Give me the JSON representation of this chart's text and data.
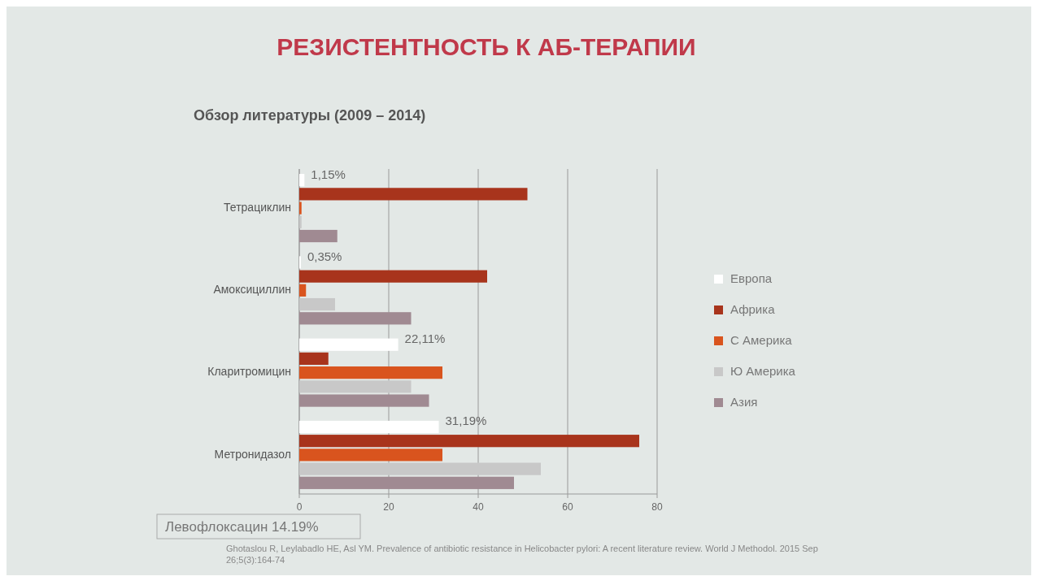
{
  "chart_data": {
    "type": "bar",
    "orientation": "horizontal",
    "title": "РЕЗИСТЕНТНОСТЬ К АБ-ТЕРАПИИ",
    "subtitle": "Обзор литературы (2009 – 2014)",
    "categories": [
      "Тетрациклин",
      "Амоксициллин",
      "Кларитромицин",
      "Метронидазол"
    ],
    "series": [
      {
        "name": "Европа",
        "color": "#ffffff",
        "values": [
          1.15,
          0.35,
          22.11,
          31.19
        ],
        "value_labels": [
          "1,15%",
          "0,35%",
          "22,11%",
          "31,19%"
        ]
      },
      {
        "name": "Африка",
        "color": "#a8341c",
        "values": [
          51,
          42,
          6.5,
          76
        ]
      },
      {
        "name": "С Америка",
        "color": "#d9541e",
        "values": [
          0.5,
          1.5,
          32,
          32
        ]
      },
      {
        "name": "Ю Америка",
        "color": "#c8c8c8",
        "values": [
          0.5,
          8,
          25,
          54
        ]
      },
      {
        "name": "Азия",
        "color": "#a08a92",
        "values": [
          8.5,
          25,
          29,
          48
        ]
      }
    ],
    "xlim": [
      0,
      80
    ],
    "xticks": [
      0,
      20,
      40,
      60,
      80
    ],
    "grid": "x",
    "legend": "right",
    "annotations": [
      "Левофлоксацин 14.19%",
      "Ghotaslou R, Leylabadlo HE, Asl YM. Prevalence of antibiotic resistance in Helicobacter pylori: A recent literature review. World J Methodol. 2015 Sep 26;5(3):164-74"
    ]
  }
}
